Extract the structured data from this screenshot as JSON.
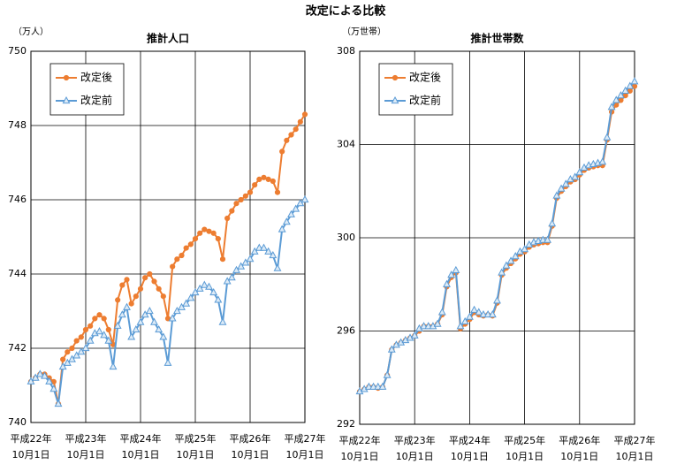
{
  "title": "改定による比較",
  "chart_data": [
    {
      "type": "line",
      "title": "推計人口",
      "y_unit_label": "（万人）",
      "categories": [
        [
          "平成22年",
          "10月1日"
        ],
        null,
        null,
        null,
        null,
        null,
        null,
        null,
        null,
        null,
        null,
        null,
        [
          "平成23年",
          "10月1日"
        ],
        null,
        null,
        null,
        null,
        null,
        null,
        null,
        null,
        null,
        null,
        null,
        [
          "平成24年",
          "10月1日"
        ],
        null,
        null,
        null,
        null,
        null,
        null,
        null,
        null,
        null,
        null,
        null,
        [
          "平成25年",
          "10月1日"
        ],
        null,
        null,
        null,
        null,
        null,
        null,
        null,
        null,
        null,
        null,
        null,
        [
          "平成26年",
          "10月1日"
        ],
        null,
        null,
        null,
        null,
        null,
        null,
        null,
        null,
        null,
        null,
        null,
        [
          "平成27年",
          "10月1日"
        ]
      ],
      "ylim": [
        740,
        750
      ],
      "yticks": [
        740,
        742,
        744,
        746,
        748,
        750
      ],
      "grid": true,
      "legend": "upper left",
      "series": [
        {
          "name": "改定後",
          "color": "#ed7d31",
          "marker": "circle",
          "values": [
            741.1,
            741.2,
            741.3,
            741.3,
            741.2,
            741.1,
            740.5,
            741.7,
            741.9,
            742.0,
            742.2,
            742.3,
            742.5,
            742.6,
            742.8,
            742.9,
            742.8,
            742.5,
            742.1,
            743.3,
            743.7,
            743.85,
            743.2,
            743.4,
            743.6,
            743.9,
            744.0,
            743.8,
            743.6,
            743.4,
            742.8,
            744.2,
            744.4,
            744.5,
            744.7,
            744.8,
            744.95,
            745.1,
            745.2,
            745.15,
            745.1,
            744.95,
            744.4,
            745.5,
            745.7,
            745.9,
            746.0,
            746.1,
            746.2,
            746.4,
            746.55,
            746.6,
            746.55,
            746.5,
            746.2,
            747.3,
            747.6,
            747.75,
            747.9,
            748.1,
            748.3
          ]
        },
        {
          "name": "改定前",
          "color": "#5b9bd5",
          "marker": "triangle",
          "values": [
            741.1,
            741.2,
            741.3,
            741.25,
            741.1,
            740.9,
            740.5,
            741.5,
            741.6,
            741.7,
            741.8,
            741.9,
            742.0,
            742.2,
            742.4,
            742.45,
            742.35,
            742.2,
            741.5,
            742.6,
            742.9,
            743.1,
            742.3,
            742.5,
            742.7,
            742.9,
            743.0,
            742.7,
            742.5,
            742.3,
            741.6,
            742.8,
            743.0,
            743.1,
            743.2,
            743.35,
            743.5,
            743.6,
            743.7,
            743.65,
            743.5,
            743.3,
            742.7,
            743.8,
            743.9,
            744.1,
            744.2,
            744.3,
            744.4,
            744.6,
            744.7,
            744.7,
            744.6,
            744.5,
            744.15,
            745.2,
            745.4,
            745.6,
            745.75,
            745.9,
            746.0
          ]
        }
      ]
    },
    {
      "type": "line",
      "title": "推計世帯数",
      "y_unit_label": "（万世帯）",
      "categories": [
        [
          "平成22年",
          "10月1日"
        ],
        null,
        null,
        null,
        null,
        null,
        null,
        null,
        null,
        null,
        null,
        null,
        [
          "平成23年",
          "10月1日"
        ],
        null,
        null,
        null,
        null,
        null,
        null,
        null,
        null,
        null,
        null,
        null,
        [
          "平成24年",
          "10月1日"
        ],
        null,
        null,
        null,
        null,
        null,
        null,
        null,
        null,
        null,
        null,
        null,
        [
          "平成25年",
          "10月1日"
        ],
        null,
        null,
        null,
        null,
        null,
        null,
        null,
        null,
        null,
        null,
        null,
        [
          "平成26年",
          "10月1日"
        ],
        null,
        null,
        null,
        null,
        null,
        null,
        null,
        null,
        null,
        null,
        null,
        [
          "平成27年",
          "10月1日"
        ]
      ],
      "ylim": [
        292,
        308
      ],
      "yticks": [
        292,
        296,
        300,
        304,
        308
      ],
      "grid": true,
      "legend": "upper left",
      "series": [
        {
          "name": "改定後",
          "color": "#ed7d31",
          "marker": "circle",
          "values": [
            293.4,
            293.5,
            293.6,
            293.6,
            293.55,
            293.6,
            294.1,
            295.2,
            295.4,
            295.5,
            295.6,
            295.7,
            295.8,
            296.0,
            296.2,
            296.2,
            296.2,
            296.3,
            296.7,
            297.9,
            298.3,
            298.5,
            296.1,
            296.3,
            296.5,
            296.8,
            296.7,
            296.65,
            296.7,
            296.65,
            297.2,
            298.4,
            298.7,
            298.9,
            299.1,
            299.3,
            299.4,
            299.6,
            299.7,
            299.75,
            299.8,
            299.8,
            300.5,
            301.7,
            302.0,
            302.2,
            302.4,
            302.5,
            302.7,
            302.9,
            303.0,
            303.05,
            303.1,
            303.1,
            304.2,
            305.4,
            305.7,
            305.9,
            306.1,
            306.3,
            306.5
          ]
        },
        {
          "name": "改定前",
          "color": "#5b9bd5",
          "marker": "triangle",
          "values": [
            293.4,
            293.5,
            293.6,
            293.6,
            293.6,
            293.6,
            294.1,
            295.2,
            295.4,
            295.5,
            295.6,
            295.7,
            295.8,
            296.1,
            296.2,
            296.2,
            296.2,
            296.3,
            296.8,
            298.0,
            298.4,
            298.6,
            296.2,
            296.4,
            296.6,
            296.9,
            296.8,
            296.7,
            296.7,
            296.7,
            297.3,
            298.5,
            298.8,
            299.0,
            299.2,
            299.4,
            299.5,
            299.7,
            299.8,
            299.85,
            299.9,
            299.9,
            300.6,
            301.8,
            302.1,
            302.3,
            302.5,
            302.6,
            302.8,
            303.0,
            303.1,
            303.15,
            303.2,
            303.25,
            304.3,
            305.6,
            305.9,
            306.1,
            306.3,
            306.5,
            306.7
          ]
        }
      ]
    }
  ]
}
